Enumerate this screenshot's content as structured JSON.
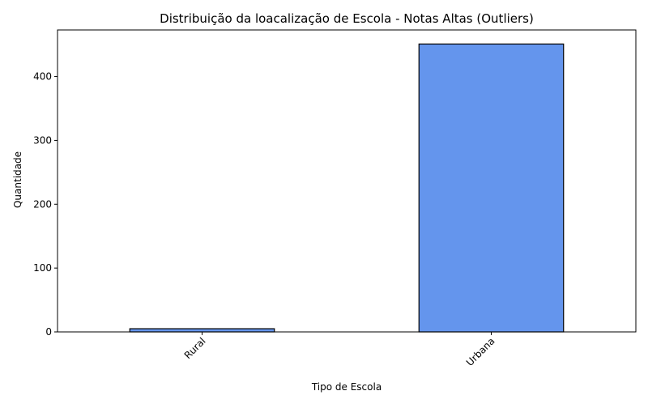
{
  "chart_data": {
    "type": "bar",
    "title": "Distribuição da loacalização de Escola - Notas Altas (Outliers)",
    "xlabel": "Tipo de Escola",
    "ylabel": "Quantidade",
    "categories": [
      "Rural",
      "Urbana"
    ],
    "values": [
      5,
      451
    ],
    "ylim": [
      0,
      473
    ],
    "yticks": [
      0,
      100,
      200,
      300,
      400
    ],
    "grid": false,
    "legend": "none",
    "bar_color": "#6495ED",
    "edge_color": "#000000"
  }
}
